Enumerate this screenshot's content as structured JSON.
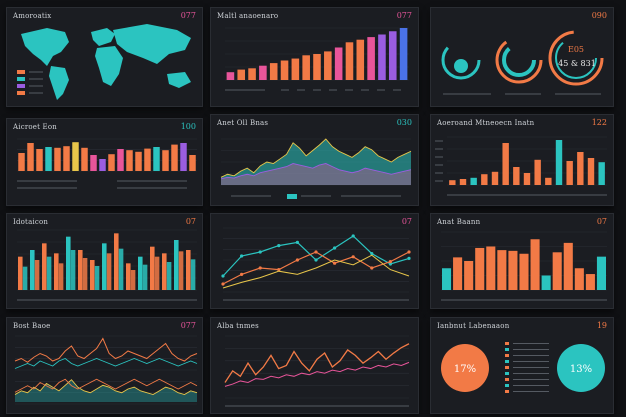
{
  "colors": {
    "teal": "#2bc4c0",
    "orange": "#f27a46",
    "pink": "#e8559a",
    "purple": "#9a5de0",
    "yellow": "#e8c64a",
    "blue": "#4a72e8",
    "panel": "#1b1d22",
    "background": "#101114"
  },
  "panels": [
    {
      "title": "Amoroatix",
      "value": "077"
    },
    {
      "title": "Maltl anaoenaro",
      "value": "077"
    },
    {
      "title": "",
      "value": "090"
    },
    {
      "title": "Aicroet Eon",
      "value": "100"
    },
    {
      "title": "Anet Oll Bnas",
      "value": "030"
    },
    {
      "title": "Aoeroand Mtneoecn Inatn",
      "value": "122"
    },
    {
      "title": "Idotaicon",
      "value": "07"
    },
    {
      "title": "",
      "value": "07"
    },
    {
      "title": "Anat Baann",
      "value": "07"
    },
    {
      "title": "Bost Baoe",
      "value": "077"
    },
    {
      "title": "Alba tnmes",
      "value": ""
    },
    {
      "title": "Ianbnut Labenaaon",
      "value": "19"
    }
  ],
  "gauge_panel": {
    "label_top": "E05",
    "label_main": "45 & 831"
  },
  "donuts": [
    {
      "label": "17%",
      "value": 17
    },
    {
      "label": "13%",
      "value": 13
    }
  ],
  "chart_data": [
    {
      "type": "bar",
      "title": "Maltl anaoenaro",
      "values": [
        12,
        16,
        18,
        22,
        26,
        30,
        33,
        38,
        40,
        44,
        50,
        58,
        62,
        66,
        70,
        75,
        80
      ]
    },
    {
      "type": "bar",
      "title": "Aicroet Eon",
      "values": [
        45,
        70,
        55,
        60,
        58,
        62,
        72,
        58,
        40,
        30,
        42,
        55,
        52,
        48,
        56,
        60,
        52,
        66,
        70,
        40
      ]
    },
    {
      "type": "area",
      "title": "Anet Oll Bnas",
      "series": [
        {
          "values": [
            10,
            14,
            12,
            18,
            22,
            16,
            25,
            30,
            28,
            34,
            40,
            55,
            48,
            38,
            45,
            52,
            60,
            50,
            44,
            40,
            36,
            42,
            50,
            46,
            38,
            34,
            30,
            36,
            40,
            44
          ]
        },
        {
          "values": [
            8,
            10,
            9,
            12,
            14,
            12,
            16,
            18,
            20,
            22,
            24,
            28,
            26,
            24,
            22,
            26,
            28,
            24,
            20,
            18,
            16,
            18,
            22,
            20,
            18,
            16,
            14,
            16,
            18,
            20
          ]
        }
      ]
    },
    {
      "type": "bar",
      "title": "Aoeroand Mtneoecn Inatn",
      "values": [
        8,
        10,
        12,
        18,
        22,
        70,
        30,
        20,
        42,
        12,
        75,
        40,
        55,
        45,
        38
      ]
    },
    {
      "type": "bar",
      "title": "Idotaicon",
      "series": [
        {
          "values": [
            50,
            60,
            70,
            55,
            80,
            60,
            45,
            70,
            85,
            40,
            50,
            65,
            55,
            75,
            60
          ]
        },
        {
          "values": [
            35,
            45,
            50,
            40,
            60,
            48,
            36,
            55,
            62,
            30,
            38,
            50,
            42,
            58,
            46
          ]
        }
      ]
    },
    {
      "type": "line",
      "series": [
        {
          "values": [
            20,
            45,
            50,
            58,
            62,
            40,
            55,
            70,
            48,
            35,
            42
          ]
        },
        {
          "values": [
            10,
            22,
            30,
            28,
            40,
            50,
            36,
            44,
            30,
            38,
            50
          ]
        },
        {
          "values": [
            5,
            12,
            18,
            26,
            22,
            30,
            40,
            34,
            46,
            28,
            20
          ]
        }
      ]
    },
    {
      "type": "bar",
      "title": "Anat Baann",
      "values": [
        30,
        45,
        40,
        58,
        60,
        55,
        54,
        50,
        70,
        20,
        52,
        65,
        30,
        22,
        46
      ]
    },
    {
      "type": "line",
      "title": "Bost Baoe",
      "series": [
        {
          "values": [
            12,
            14,
            11,
            15,
            18,
            16,
            12,
            14,
            20,
            24,
            16,
            14,
            18,
            22,
            30,
            18,
            14,
            16,
            20,
            18,
            16,
            14,
            18,
            22,
            26,
            18,
            14,
            12,
            16,
            18
          ]
        },
        {
          "values": [
            6,
            8,
            10,
            8,
            12,
            10,
            8,
            12,
            14,
            10,
            8,
            10,
            12,
            14,
            12,
            10,
            8,
            10,
            12,
            14,
            12,
            10,
            12,
            14,
            12,
            10,
            8,
            10,
            12,
            10
          ]
        },
        {
          "values": [
            4,
            6,
            5,
            8,
            6,
            10,
            8,
            6,
            9,
            12,
            8,
            6,
            5,
            7,
            9,
            8,
            6,
            5,
            7,
            8,
            6,
            5,
            4,
            6,
            8,
            7,
            5,
            4,
            6,
            5
          ]
        }
      ]
    },
    {
      "type": "line",
      "title": "Alba tnmes",
      "series": [
        {
          "values": [
            20,
            35,
            28,
            45,
            30,
            40,
            55,
            38,
            42,
            60,
            45,
            35,
            50,
            58,
            40,
            48,
            62,
            55,
            45,
            52,
            60,
            50,
            58,
            65,
            70
          ]
        },
        {
          "values": [
            15,
            18,
            22,
            20,
            25,
            24,
            28,
            26,
            30,
            28,
            32,
            30,
            34,
            32,
            36,
            34,
            38,
            36,
            40,
            38,
            42,
            40,
            44,
            42,
            46
          ]
        }
      ]
    }
  ]
}
